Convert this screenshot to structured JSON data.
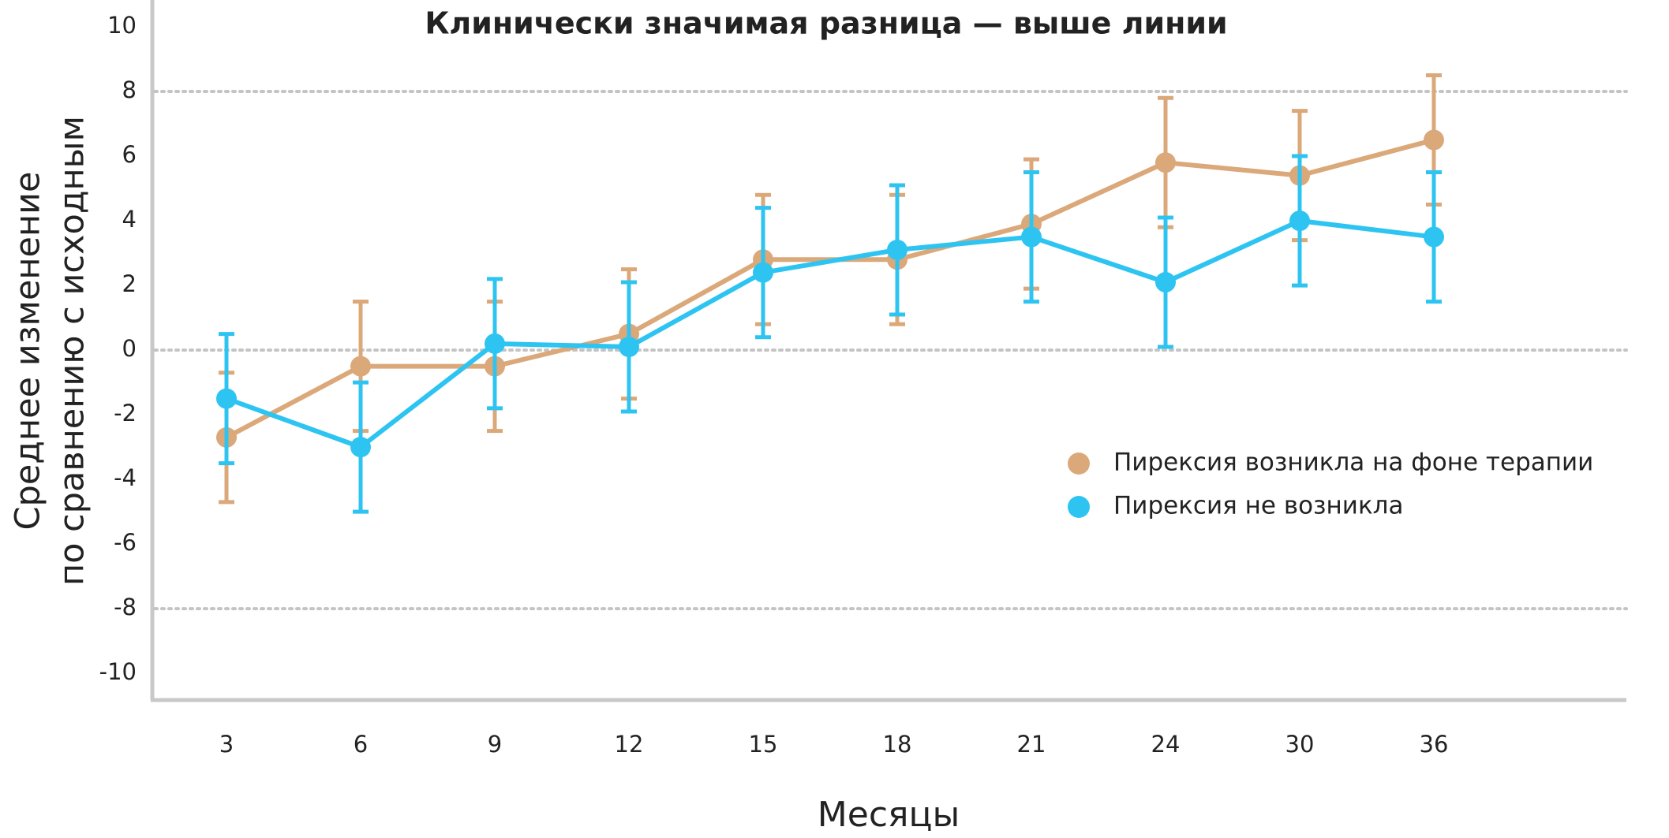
{
  "chart_data": {
    "type": "line",
    "title": "Клинически значимая разница — выше линии",
    "xlabel": "Месяцы",
    "ylabel": [
      "Среднее изменение",
      "по сравнению с исходным"
    ],
    "categories": [
      "3",
      "6",
      "9",
      "12",
      "15",
      "18",
      "21",
      "24",
      "30",
      "36"
    ],
    "series": [
      {
        "name": "Пирексия возникла на фоне терапии",
        "color": "#dba87a",
        "values": [
          -2.7,
          -0.5,
          -0.5,
          0.5,
          2.8,
          2.8,
          3.9,
          5.8,
          5.4,
          6.5
        ],
        "errors": [
          2.0,
          2.0,
          2.0,
          2.0,
          2.0,
          2.0,
          2.0,
          2.0,
          2.0,
          2.0
        ]
      },
      {
        "name": "Пирексия не возникла",
        "color": "#2ec4f2",
        "values": [
          -1.5,
          -3.0,
          0.2,
          0.1,
          2.4,
          3.1,
          3.5,
          2.1,
          4.0,
          3.5
        ],
        "errors": [
          2.0,
          2.0,
          2.0,
          2.0,
          2.0,
          2.0,
          2.0,
          2.0,
          2.0,
          2.0
        ]
      }
    ],
    "ylim": [
      -10.8,
      10.6
    ],
    "yticks": [
      -10,
      -8,
      -6,
      -4,
      -2,
      0,
      2,
      4,
      6,
      8,
      10
    ],
    "reference_lines": [
      8,
      0,
      -8
    ],
    "legend": "right"
  }
}
